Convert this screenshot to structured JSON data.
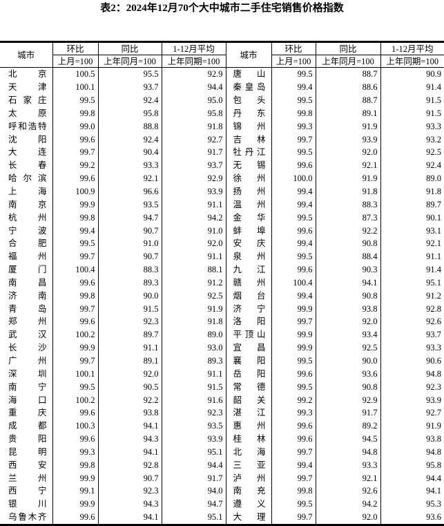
{
  "title": "表2：2024年12月70个大中城市二手住宅销售价格指数",
  "headers": {
    "city": "城市",
    "mom": "环比",
    "yoy": "同比",
    "avg": "1-12月平均",
    "mom_base": "上月=100",
    "yoy_base": "上年同月=100",
    "avg_base": "上年同期=100"
  },
  "left_rows": [
    [
      "北京",
      "100.5",
      "95.5",
      "92.9"
    ],
    [
      "天津",
      "100.1",
      "93.7",
      "94.4"
    ],
    [
      "石家庄",
      "99.5",
      "92.4",
      "95.0"
    ],
    [
      "太原",
      "99.8",
      "95.8",
      "95.8"
    ],
    [
      "呼和浩特",
      "99.0",
      "88.8",
      "91.8"
    ],
    [
      "沈阳",
      "99.6",
      "92.4",
      "92.7"
    ],
    [
      "大连",
      "99.7",
      "90.4",
      "91.7"
    ],
    [
      "长春",
      "99.2",
      "93.3",
      "93.7"
    ],
    [
      "哈尔滨",
      "99.6",
      "92.1",
      "92.9"
    ],
    [
      "上海",
      "100.9",
      "96.6",
      "93.9"
    ],
    [
      "南京",
      "99.9",
      "93.5",
      "91.1"
    ],
    [
      "杭州",
      "99.8",
      "94.7",
      "94.2"
    ],
    [
      "宁波",
      "99.4",
      "90.7",
      "91.0"
    ],
    [
      "合肥",
      "99.5",
      "91.0",
      "92.0"
    ],
    [
      "福州",
      "99.7",
      "90.7",
      "91.1"
    ],
    [
      "厦门",
      "100.4",
      "88.3",
      "88.1"
    ],
    [
      "南昌",
      "99.6",
      "89.3",
      "91.2"
    ],
    [
      "济南",
      "99.8",
      "90.0",
      "92.5"
    ],
    [
      "青岛",
      "99.7",
      "91.5",
      "91.9"
    ],
    [
      "郑州",
      "99.6",
      "92.3",
      "91.8"
    ],
    [
      "武汉",
      "100.2",
      "89.7",
      "89.0"
    ],
    [
      "长沙",
      "99.9",
      "91.1",
      "93.0"
    ],
    [
      "广州",
      "99.7",
      "89.1",
      "89.3"
    ],
    [
      "深圳",
      "100.1",
      "92.0",
      "91.1"
    ],
    [
      "南宁",
      "99.5",
      "90.5",
      "91.5"
    ],
    [
      "海口",
      "100.2",
      "92.2",
      "91.6"
    ],
    [
      "重庆",
      "99.6",
      "93.8",
      "92.3"
    ],
    [
      "成都",
      "100.3",
      "94.1",
      "93.5"
    ],
    [
      "贵阳",
      "99.6",
      "94.3",
      "93.9"
    ],
    [
      "昆明",
      "99.3",
      "94.1",
      "95.1"
    ],
    [
      "西安",
      "99.8",
      "92.8",
      "94.4"
    ],
    [
      "兰州",
      "99.9",
      "90.7",
      "91.7"
    ],
    [
      "西宁",
      "99.1",
      "92.3",
      "94.0"
    ],
    [
      "银川",
      "99.9",
      "94.3",
      "94.7"
    ],
    [
      "乌鲁木齐",
      "99.6",
      "94.1",
      "95.1"
    ]
  ],
  "right_rows": [
    [
      "唐山",
      "99.5",
      "88.7",
      "90.9"
    ],
    [
      "秦皇岛",
      "99.4",
      "88.6",
      "91.4"
    ],
    [
      "包头",
      "99.5",
      "88.7",
      "91.5"
    ],
    [
      "丹东",
      "99.8",
      "89.1",
      "91.5"
    ],
    [
      "锦州",
      "99.3",
      "91.9",
      "93.3"
    ],
    [
      "吉林",
      "99.7",
      "93.9",
      "93.2"
    ],
    [
      "牡丹江",
      "99.5",
      "92.0",
      "92.5"
    ],
    [
      "无锡",
      "99.6",
      "92.1",
      "92.4"
    ],
    [
      "徐州",
      "100.0",
      "91.9",
      "89.0"
    ],
    [
      "扬州",
      "99.4",
      "91.8",
      "91.8"
    ],
    [
      "温州",
      "99.4",
      "88.3",
      "89.7"
    ],
    [
      "金华",
      "99.5",
      "87.3",
      "90.1"
    ],
    [
      "蚌埠",
      "99.6",
      "92.2",
      "93.1"
    ],
    [
      "安庆",
      "99.4",
      "90.8",
      "92.1"
    ],
    [
      "泉州",
      "99.5",
      "88.4",
      "91.1"
    ],
    [
      "九江",
      "99.6",
      "90.3",
      "91.4"
    ],
    [
      "赣州",
      "100.4",
      "94.1",
      "95.1"
    ],
    [
      "烟台",
      "99.4",
      "90.8",
      "91.2"
    ],
    [
      "济宁",
      "99.9",
      "93.8",
      "92.8"
    ],
    [
      "洛阳",
      "99.7",
      "92.0",
      "92.6"
    ],
    [
      "平顶山",
      "99.9",
      "93.4",
      "93.7"
    ],
    [
      "宜昌",
      "99.9",
      "92.5",
      "93.3"
    ],
    [
      "襄阳",
      "99.5",
      "90.0",
      "90.6"
    ],
    [
      "岳阳",
      "99.6",
      "93.6",
      "94.8"
    ],
    [
      "常德",
      "99.5",
      "90.8",
      "92.3"
    ],
    [
      "韶关",
      "99.2",
      "92.9",
      "93.9"
    ],
    [
      "湛江",
      "99.3",
      "91.7",
      "92.7"
    ],
    [
      "惠州",
      "99.6",
      "89.2",
      "91.9"
    ],
    [
      "桂林",
      "99.6",
      "94.5",
      "93.8"
    ],
    [
      "北海",
      "99.7",
      "94.8",
      "94.8"
    ],
    [
      "三亚",
      "99.4",
      "93.3",
      "95.8"
    ],
    [
      "泸州",
      "99.7",
      "92.1",
      "94.4"
    ],
    [
      "南充",
      "99.8",
      "92.6",
      "94.1"
    ],
    [
      "遵义",
      "99.5",
      "94.2",
      "95.3"
    ],
    [
      "大理",
      "99.7",
      "92.0",
      "93.6"
    ]
  ]
}
